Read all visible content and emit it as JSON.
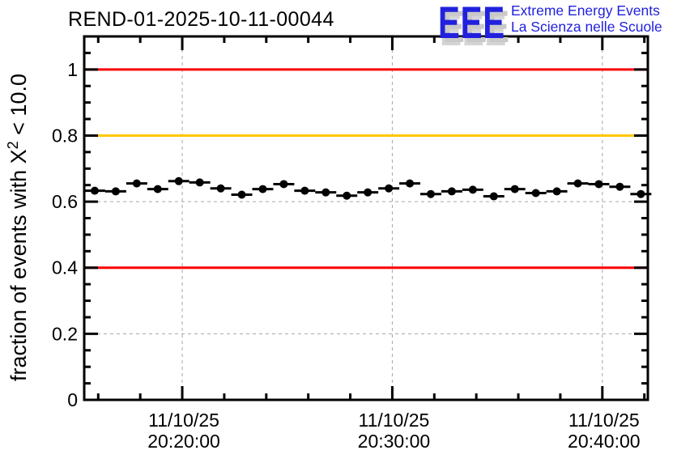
{
  "title": "REND-01-2025-10-11-00044",
  "logo": {
    "text": "EEE",
    "line1": "Extreme Energy Events",
    "line2": "La Scienza nelle Scuole",
    "color": "#2121dd",
    "shadow_color": "#c9c9c9"
  },
  "chart_data": {
    "type": "scatter",
    "title": "REND-01-2025-10-11-00044",
    "xlabel": "",
    "ylabel": "fraction of events with X^2 < 10.0",
    "ylabel_parts": {
      "prefix": "fraction of events with X",
      "sup": "2",
      "suffix": " < 10.0"
    },
    "ylim": [
      0,
      1.1
    ],
    "y_ticks": [
      {
        "value": 0,
        "label": "0"
      },
      {
        "value": 0.2,
        "label": "0.2"
      },
      {
        "value": 0.4,
        "label": "0.4"
      },
      {
        "value": 0.6,
        "label": "0.6"
      },
      {
        "value": 0.8,
        "label": "0.8"
      },
      {
        "value": 1.0,
        "label": "1"
      }
    ],
    "y_minor_step": 0.05,
    "x_axis": {
      "start": "20:15:20",
      "end": "20:42:10",
      "minor_step_seconds": 120,
      "major_ticks": [
        {
          "date": "11/10/25",
          "time": "20:20:00"
        },
        {
          "date": "11/10/25",
          "time": "20:30:00"
        },
        {
          "date": "11/10/25",
          "time": "20:40:00"
        }
      ]
    },
    "grid": {
      "color": "#a6a6a6",
      "dash": "4 4",
      "y_values": [
        0.2,
        0.4,
        0.6,
        0.8,
        1.0
      ]
    },
    "reference_lines": [
      {
        "y": 1.0,
        "color": "#ff0000"
      },
      {
        "y": 0.8,
        "color": "#ffc800"
      },
      {
        "y": 0.4,
        "color": "#ff0000"
      }
    ],
    "series": [
      {
        "name": "fraction_of_events_chi2_lt_10",
        "marker": "filled-circle",
        "color": "#000000",
        "x_error_seconds": 30,
        "points": [
          {
            "t": "20:15:50",
            "y": 0.633
          },
          {
            "t": "20:16:50",
            "y": 0.631
          },
          {
            "t": "20:17:50",
            "y": 0.655
          },
          {
            "t": "20:18:50",
            "y": 0.638
          },
          {
            "t": "20:19:50",
            "y": 0.662
          },
          {
            "t": "20:20:50",
            "y": 0.658
          },
          {
            "t": "20:21:50",
            "y": 0.64
          },
          {
            "t": "20:22:50",
            "y": 0.621
          },
          {
            "t": "20:23:50",
            "y": 0.638
          },
          {
            "t": "20:24:50",
            "y": 0.653
          },
          {
            "t": "20:25:50",
            "y": 0.633
          },
          {
            "t": "20:26:50",
            "y": 0.628
          },
          {
            "t": "20:27:50",
            "y": 0.618
          },
          {
            "t": "20:28:50",
            "y": 0.628
          },
          {
            "t": "20:29:50",
            "y": 0.64
          },
          {
            "t": "20:30:50",
            "y": 0.655
          },
          {
            "t": "20:31:50",
            "y": 0.623
          },
          {
            "t": "20:32:50",
            "y": 0.631
          },
          {
            "t": "20:33:50",
            "y": 0.636
          },
          {
            "t": "20:34:50",
            "y": 0.616
          },
          {
            "t": "20:35:50",
            "y": 0.638
          },
          {
            "t": "20:36:50",
            "y": 0.626
          },
          {
            "t": "20:37:50",
            "y": 0.631
          },
          {
            "t": "20:38:50",
            "y": 0.655
          },
          {
            "t": "20:39:50",
            "y": 0.653
          },
          {
            "t": "20:40:50",
            "y": 0.645
          },
          {
            "t": "20:41:50",
            "y": 0.623
          }
        ]
      }
    ]
  }
}
